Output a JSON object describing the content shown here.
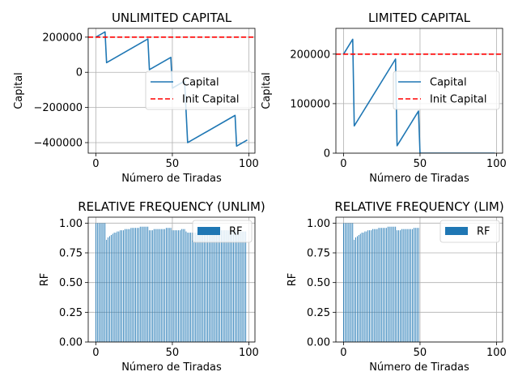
{
  "figure": {
    "background": "#ffffff"
  },
  "chart_data": [
    {
      "type": "line",
      "title": "UNLIMITED CAPITAL",
      "xlabel": "Número de Tiradas",
      "ylabel": "Capital",
      "xlim": [
        -5,
        104
      ],
      "ylim": [
        -460000,
        250000
      ],
      "xticks": [
        0,
        50,
        100
      ],
      "xtick_labels": [
        "0",
        "50",
        "100"
      ],
      "yticks": [
        200000,
        0,
        -200000,
        -400000
      ],
      "ytick_labels": [
        "200000",
        "0",
        "−200000",
        "−400000"
      ],
      "grid": true,
      "legend_position": "center-right",
      "series": [
        {
          "name": "Capital",
          "color": "#1f77b4",
          "style": "solid",
          "points": [
            [
              0,
              200000
            ],
            [
              6,
              230000
            ],
            [
              7,
              55000
            ],
            [
              34,
              190000
            ],
            [
              35,
              15000
            ],
            [
              49,
              85000
            ],
            [
              50,
              -90000
            ],
            [
              58,
              -50000
            ],
            [
              59,
              -225000
            ],
            [
              60,
              -400000
            ],
            [
              91,
              -245000
            ],
            [
              92,
              -420000
            ],
            [
              99,
              -385000
            ]
          ]
        },
        {
          "name": "Init Capital",
          "color": "#ff0000",
          "style": "dashed",
          "points": [
            [
              -5,
              200000
            ],
            [
              104,
              200000
            ]
          ]
        }
      ]
    },
    {
      "type": "line",
      "title": "LIMITED CAPITAL",
      "xlabel": "Número de Tiradas",
      "ylabel": "Capital",
      "xlim": [
        -5,
        104
      ],
      "ylim": [
        0,
        252000
      ],
      "xticks": [
        0,
        50,
        100
      ],
      "xtick_labels": [
        "0",
        "50",
        "100"
      ],
      "yticks": [
        200000,
        100000,
        0
      ],
      "ytick_labels": [
        "200000",
        "100000",
        "0"
      ],
      "grid": true,
      "legend_position": "center-right",
      "series": [
        {
          "name": "Capital",
          "color": "#1f77b4",
          "style": "solid",
          "points": [
            [
              0,
              200000
            ],
            [
              6,
              230000
            ],
            [
              7,
              55000
            ],
            [
              34,
              190000
            ],
            [
              35,
              15000
            ],
            [
              49,
              85000
            ],
            [
              50,
              0
            ],
            [
              99,
              0
            ]
          ]
        },
        {
          "name": "Init Capital",
          "color": "#ff0000",
          "style": "dashed",
          "points": [
            [
              -5,
              200000
            ],
            [
              104,
              200000
            ]
          ]
        }
      ]
    },
    {
      "type": "bar",
      "title": "RELATIVE FREQUENCY (UNLIM)",
      "xlabel": "Número de Tiradas",
      "ylabel": "RF",
      "xlim": [
        -5,
        104
      ],
      "ylim": [
        0,
        1.05
      ],
      "xticks": [
        0,
        50,
        100
      ],
      "xtick_labels": [
        "0",
        "50",
        "100"
      ],
      "yticks": [
        0.0,
        0.25,
        0.5,
        0.75,
        1.0
      ],
      "ytick_labels": [
        "0.00",
        "0.25",
        "0.50",
        "0.75",
        "1.00"
      ],
      "grid": true,
      "legend_position": "top-right",
      "series": [
        {
          "name": "RF",
          "color": "#1f77b4",
          "x": [
            0,
            1,
            2,
            3,
            4,
            5,
            6,
            7,
            8,
            9,
            10,
            11,
            12,
            13,
            14,
            15,
            16,
            17,
            18,
            19,
            20,
            21,
            22,
            23,
            24,
            25,
            26,
            27,
            28,
            29,
            30,
            31,
            32,
            33,
            34,
            35,
            36,
            37,
            38,
            39,
            40,
            41,
            42,
            43,
            44,
            45,
            46,
            47,
            48,
            49,
            50,
            51,
            52,
            53,
            54,
            55,
            56,
            57,
            58,
            59,
            60,
            61,
            62,
            63,
            64,
            65,
            66,
            67,
            68,
            69,
            70,
            71,
            72,
            73,
            74,
            75,
            76,
            77,
            78,
            79,
            80,
            81,
            82,
            83,
            84,
            85,
            86,
            87,
            88,
            89,
            90,
            91,
            92,
            93,
            94,
            95,
            96,
            97,
            98
          ],
          "values": [
            1.0,
            1.0,
            1.0,
            1.0,
            1.0,
            1.0,
            1.0,
            0.86,
            0.88,
            0.89,
            0.9,
            0.91,
            0.92,
            0.92,
            0.93,
            0.93,
            0.94,
            0.94,
            0.94,
            0.95,
            0.95,
            0.95,
            0.95,
            0.96,
            0.96,
            0.96,
            0.96,
            0.96,
            0.96,
            0.97,
            0.97,
            0.97,
            0.97,
            0.97,
            0.97,
            0.94,
            0.94,
            0.94,
            0.95,
            0.95,
            0.95,
            0.95,
            0.95,
            0.95,
            0.95,
            0.95,
            0.96,
            0.96,
            0.96,
            0.96,
            0.94,
            0.94,
            0.94,
            0.94,
            0.94,
            0.94,
            0.95,
            0.95,
            0.95,
            0.93,
            0.92,
            0.92,
            0.92,
            0.92,
            0.92,
            0.92,
            0.92,
            0.92,
            0.93,
            0.93,
            0.93,
            0.93,
            0.93,
            0.93,
            0.93,
            0.93,
            0.93,
            0.93,
            0.94,
            0.94,
            0.94,
            0.94,
            0.94,
            0.94,
            0.94,
            0.94,
            0.94,
            0.94,
            0.94,
            0.94,
            0.94,
            0.94,
            0.93,
            0.93,
            0.93,
            0.93,
            0.93,
            0.93,
            0.93
          ]
        }
      ]
    },
    {
      "type": "bar",
      "title": "RELATIVE FREQUENCY (LIM)",
      "xlabel": "Número de Tiradas",
      "ylabel": "RF",
      "xlim": [
        -5,
        104
      ],
      "ylim": [
        0,
        1.05
      ],
      "xticks": [
        0,
        50,
        100
      ],
      "xtick_labels": [
        "0",
        "50",
        "100"
      ],
      "yticks": [
        0.0,
        0.25,
        0.5,
        0.75,
        1.0
      ],
      "ytick_labels": [
        "0.00",
        "0.25",
        "0.50",
        "0.75",
        "1.00"
      ],
      "grid": true,
      "legend_position": "top-right",
      "series": [
        {
          "name": "RF",
          "color": "#1f77b4",
          "x": [
            0,
            1,
            2,
            3,
            4,
            5,
            6,
            7,
            8,
            9,
            10,
            11,
            12,
            13,
            14,
            15,
            16,
            17,
            18,
            19,
            20,
            21,
            22,
            23,
            24,
            25,
            26,
            27,
            28,
            29,
            30,
            31,
            32,
            33,
            34,
            35,
            36,
            37,
            38,
            39,
            40,
            41,
            42,
            43,
            44,
            45,
            46,
            47,
            48,
            49
          ],
          "values": [
            1.0,
            1.0,
            1.0,
            1.0,
            1.0,
            1.0,
            1.0,
            0.86,
            0.88,
            0.89,
            0.9,
            0.91,
            0.92,
            0.92,
            0.93,
            0.93,
            0.94,
            0.94,
            0.94,
            0.95,
            0.95,
            0.95,
            0.95,
            0.96,
            0.96,
            0.96,
            0.96,
            0.96,
            0.96,
            0.97,
            0.97,
            0.97,
            0.97,
            0.97,
            0.97,
            0.94,
            0.94,
            0.94,
            0.95,
            0.95,
            0.95,
            0.95,
            0.95,
            0.95,
            0.95,
            0.95,
            0.96,
            0.96,
            0.96,
            0.96
          ]
        }
      ]
    }
  ]
}
